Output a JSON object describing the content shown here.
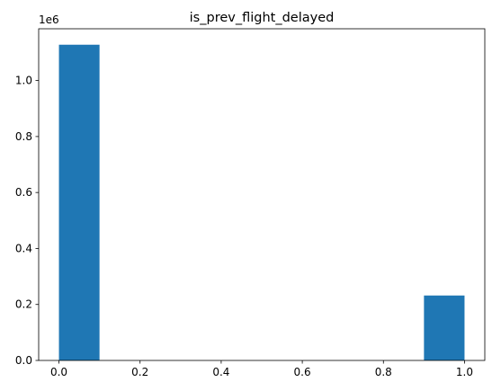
{
  "chart_data": {
    "type": "bar",
    "title": "is_prev_flight_delayed",
    "xlabel": "",
    "ylabel": "",
    "y_offset_label": "1e6",
    "xlim": [
      -0.05,
      1.05
    ],
    "ylim": [
      0,
      1.185
    ],
    "x_ticks": [
      0.0,
      0.2,
      0.4,
      0.6,
      0.8,
      1.0
    ],
    "x_tick_labels": [
      "0.0",
      "0.2",
      "0.4",
      "0.6",
      "0.8",
      "1.0"
    ],
    "y_ticks": [
      0.0,
      0.2,
      0.4,
      0.6,
      0.8,
      1.0
    ],
    "y_tick_labels": [
      "0.0",
      "0.2",
      "0.4",
      "0.6",
      "0.8",
      "1.0"
    ],
    "bins": [
      {
        "x0": 0.0,
        "x1": 0.1,
        "value": 1.128
      },
      {
        "x0": 0.9,
        "x1": 1.0,
        "value": 0.232
      }
    ],
    "grid": false,
    "bar_color": "#1f77b4"
  }
}
